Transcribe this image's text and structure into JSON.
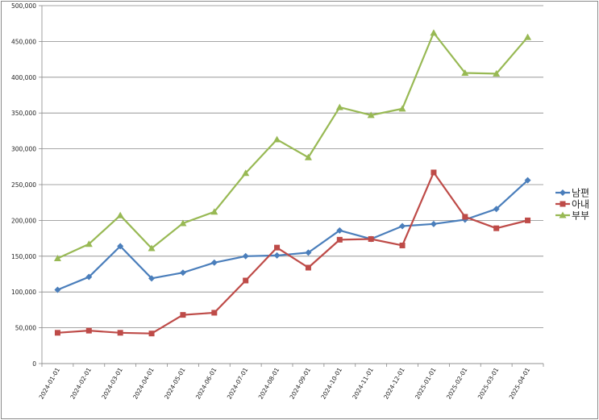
{
  "chart_data": {
    "type": "line",
    "categories": [
      "2024-01-01",
      "2024-02-01",
      "2024-03-01",
      "2024-04-01",
      "2024-05-01",
      "2024-06-01",
      "2024-07-01",
      "2024-08-01",
      "2024-09-01",
      "2024-10-01",
      "2024-11-01",
      "2024-12-01",
      "2025-01-01",
      "2025-02-01",
      "2025-03-01",
      "2025-04-01"
    ],
    "y_ticks": [
      "0",
      "50,000",
      "100,000",
      "150,000",
      "200,000",
      "250,000",
      "300,000",
      "350,000",
      "400,000",
      "450,000",
      "500,000"
    ],
    "ylim": [
      0,
      500000
    ],
    "grid": "horizontal",
    "legend_position": "right",
    "series": [
      {
        "name": "남편",
        "color": "#4a7ebb",
        "marker": "diamond",
        "values": [
          103000,
          121000,
          164000,
          119000,
          127000,
          141000,
          150000,
          151000,
          155000,
          186000,
          174000,
          192000,
          195000,
          201000,
          216000,
          256000
        ]
      },
      {
        "name": "아내",
        "color": "#be4b48",
        "marker": "square",
        "values": [
          43000,
          46000,
          43000,
          42000,
          68000,
          71000,
          116000,
          162000,
          134000,
          173000,
          174000,
          165000,
          267000,
          205000,
          189000,
          200000
        ]
      },
      {
        "name": "부부",
        "color": "#98b954",
        "marker": "triangle",
        "values": [
          147000,
          167000,
          207000,
          161000,
          196000,
          212000,
          266000,
          313000,
          288000,
          358000,
          347000,
          356000,
          462000,
          406000,
          405000,
          456000
        ]
      }
    ]
  }
}
